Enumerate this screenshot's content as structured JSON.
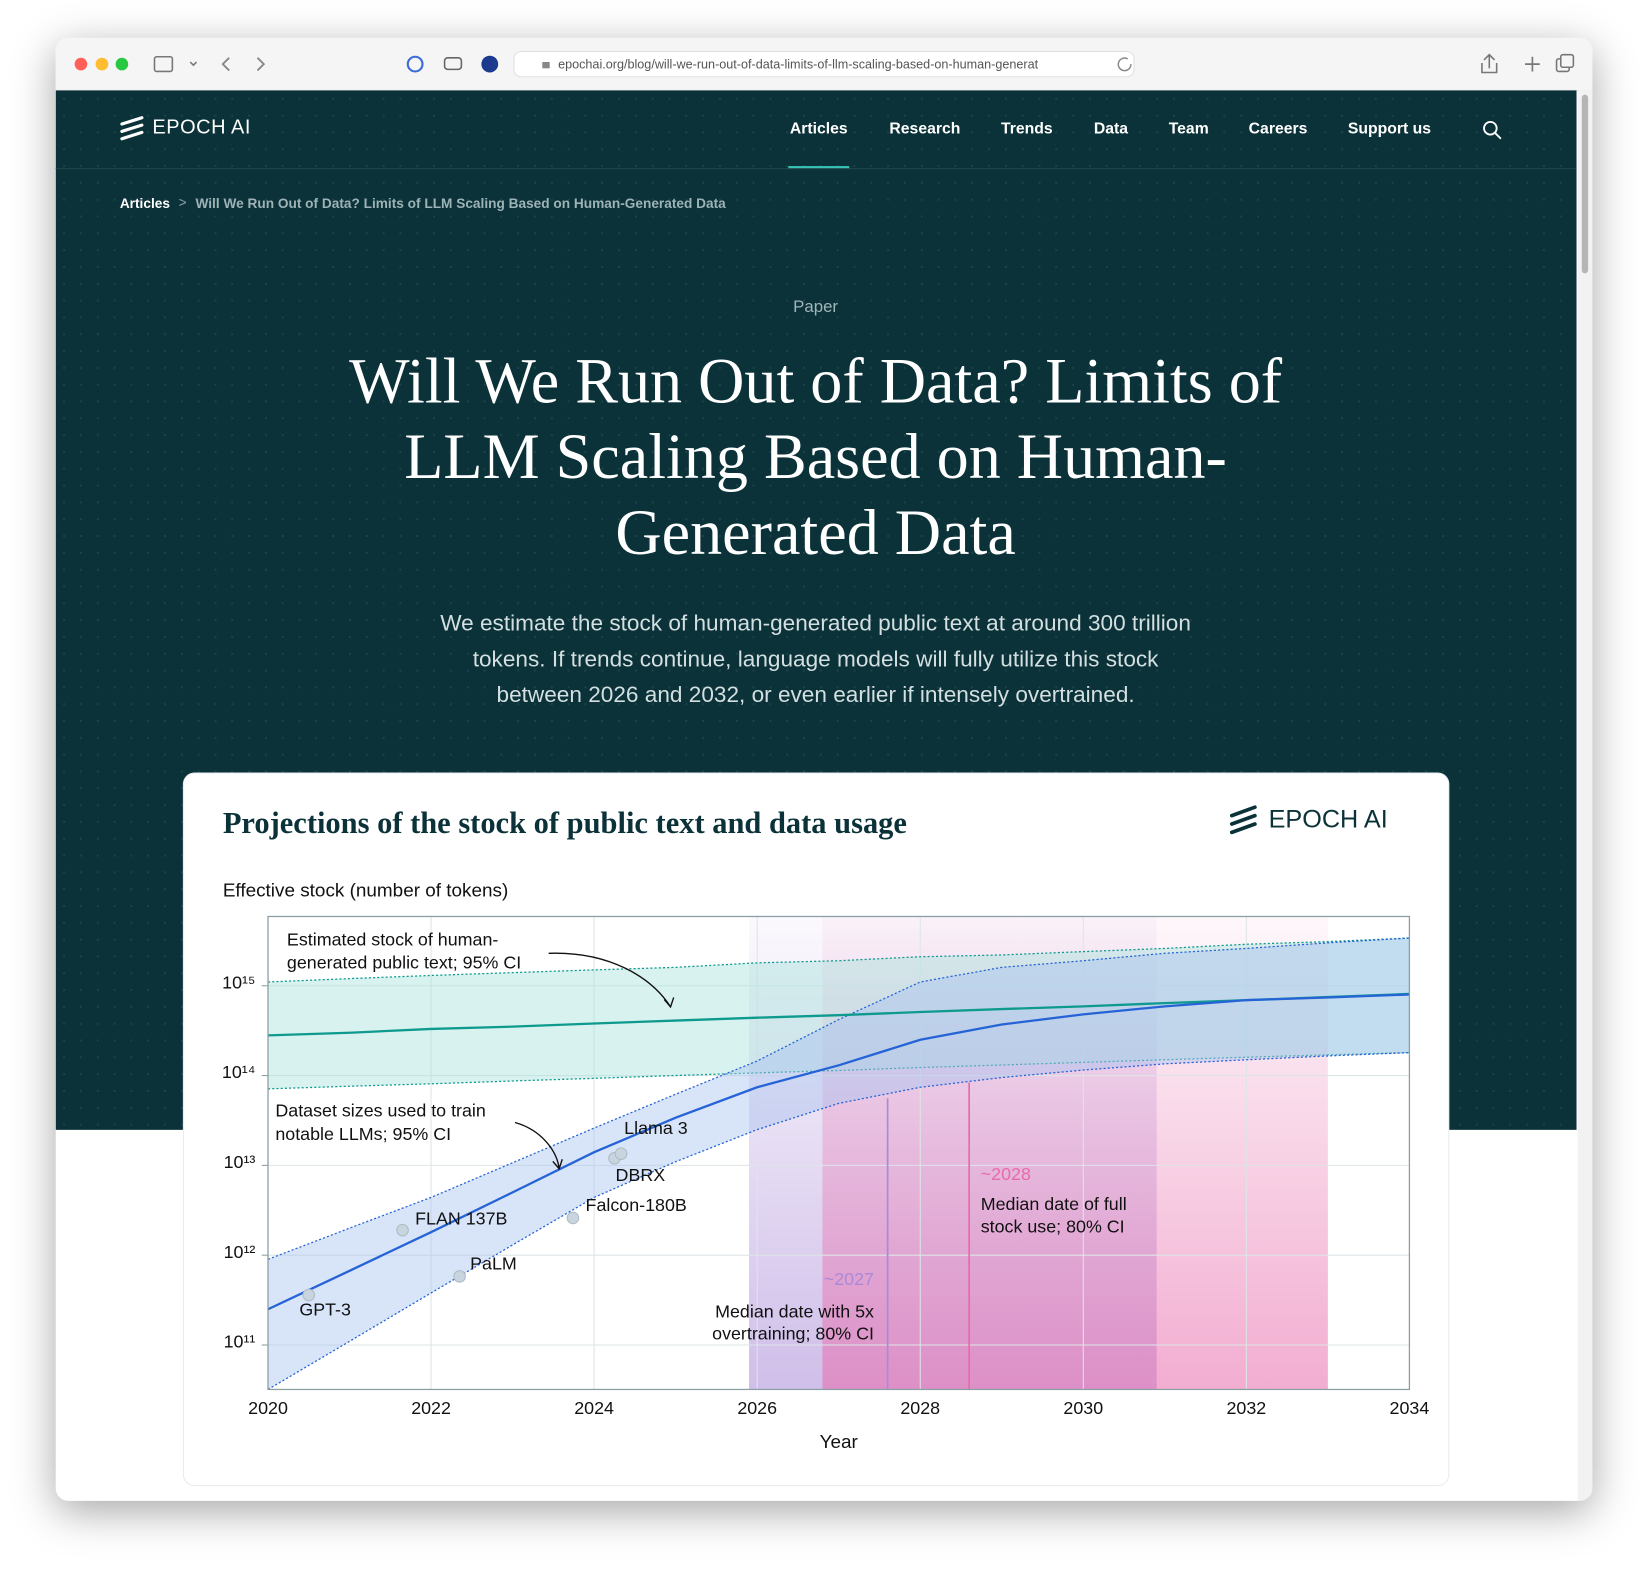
{
  "browser": {
    "url": "epochai.org/blog/will-we-run-out-of-data-limits-of-llm-scaling-based-on-human-generat"
  },
  "nav": {
    "logo": "EPOCH AI",
    "items": [
      "Articles",
      "Research",
      "Trends",
      "Data",
      "Team",
      "Careers",
      "Support us"
    ],
    "active": 0
  },
  "breadcrumb": [
    "Articles",
    "Will We Run Out of Data? Limits of LLM Scaling Based on Human-Generated Data"
  ],
  "header": {
    "kicker": "Paper",
    "title": "Will We Run Out of Data? Limits of LLM Scaling Based on Human-Generated Data",
    "subtitle": "We estimate the stock of human-generated public text at around 300 trillion tokens. If trends continue, language models will fully utilize this stock between 2026 and 2032, or even earlier if intensely overtrained."
  },
  "chart_data": {
    "type": "line",
    "title": "Projections of the stock of public text and data usage",
    "logo": "EPOCH AI",
    "y_label": "Effective stock (number of tokens)",
    "x_label": "Year",
    "log_y": true,
    "grid": true,
    "xlim": [
      2020,
      2034
    ],
    "xticks": [
      2020,
      2022,
      2024,
      2026,
      2028,
      2030,
      2032,
      2034
    ],
    "ylim": [
      32000000000.0,
      5900000000000000.0
    ],
    "yticks": [
      {
        "value": 100000000000.0,
        "label": "10¹¹"
      },
      {
        "value": 1000000000000.0,
        "label": "10¹²"
      },
      {
        "value": 10000000000000.0,
        "label": "10¹³"
      },
      {
        "value": 100000000000000.0,
        "label": "10¹⁴"
      },
      {
        "value": 1000000000000000.0,
        "label": "10¹⁵"
      }
    ],
    "x": [
      2020,
      2021,
      2022,
      2023,
      2024,
      2025,
      2026,
      2027,
      2028,
      2029,
      2030,
      2031,
      2032,
      2033,
      2034
    ],
    "series": [
      {
        "color": "#0e9a8e",
        "band_color": "#a8e2dc",
        "values": [
          280000000000000.0,
          300000000000000.0,
          330000000000000.0,
          350000000000000.0,
          380000000000000.0,
          410000000000000.0,
          440000000000000.0,
          470000000000000.0,
          510000000000000.0,
          550000000000000.0,
          590000000000000.0,
          640000000000000.0,
          690000000000000.0,
          750000000000000.0,
          810000000000000.0
        ],
        "upper": [
          1100000000000000.0,
          1200000000000000.0,
          1300000000000000.0,
          1400000000000000.0,
          1500000000000000.0,
          1600000000000000.0,
          1800000000000000.0,
          1900000000000000.0,
          2100000000000000.0,
          2200000000000000.0,
          2400000000000000.0,
          2600000000000000.0,
          2900000000000000.0,
          3100000000000000.0,
          3400000000000000.0
        ],
        "lower": [
          71000000000000.0,
          76000000000000.0,
          81000000000000.0,
          87000000000000.0,
          93000000000000.0,
          100000000000000.0,
          107000000000000.0,
          114000000000000.0,
          123000000000000.0,
          131000000000000.0,
          140000000000000.0,
          150000000000000.0,
          160000000000000.0,
          170000000000000.0,
          180000000000000.0
        ]
      },
      {
        "color": "#2563d6",
        "band_color": "#a9c4f0",
        "values": [
          250000000000.0,
          670000000000.0,
          1800000000000.0,
          5000000000000.0,
          14000000000000.0,
          34000000000000.0,
          74000000000000.0,
          130000000000000.0,
          250000000000000.0,
          370000000000000.0,
          480000000000000.0,
          590000000000000.0,
          690000000000000.0,
          740000000000000.0,
          800000000000000.0
        ],
        "upper": [
          900000000000.0,
          2000000000000.0,
          4400000000000.0,
          10700000000000.0,
          26000000000000.0,
          62000000000000.0,
          145000000000000.0,
          420000000000000.0,
          1100000000000000.0,
          1600000000000000.0,
          1900000000000000.0,
          2300000000000000.0,
          2600000000000000.0,
          3000000000000000.0,
          3400000000000000.0
        ],
        "lower": [
          32000000000.0,
          110000000000.0,
          380000000000.0,
          1300000000000.0,
          4400000000000.0,
          11000000000000.0,
          25000000000000.0,
          49000000000000.0,
          74000000000000.0,
          95000000000000.0,
          115000000000000.0,
          135000000000000.0,
          150000000000000.0,
          165000000000000.0,
          180000000000000.0
        ]
      }
    ],
    "models": {
      "names": [
        "GPT-3",
        "FLAN 137B",
        "PaLM",
        "Falcon-180B",
        "DBRX",
        "Llama 3"
      ],
      "x": [
        2020.5,
        2021.65,
        2022.35,
        2023.74,
        2024.25,
        2024.33
      ],
      "values": [
        360000000000.0,
        1900000000000.0,
        580000000000.0,
        2600000000000.0,
        12000000000000.0,
        13500000000000.0
      ]
    },
    "intervals": [
      {
        "range": [
          2025.9,
          2030.9
        ],
        "median": 2027.6,
        "color": "#a98ad8",
        "median_label": "~2027",
        "label": [
          "Median date with 5x",
          "overtraining; 80% CI"
        ]
      },
      {
        "range": [
          2026.8,
          2033.0
        ],
        "median": 2028.6,
        "color": "#e86aaa",
        "median_label": "~2028",
        "label": [
          "Median date of full",
          "stock use; 80% CI"
        ]
      }
    ],
    "annotations": [
      [
        "Estimated stock of human-",
        "generated public text; 95% CI"
      ],
      [
        "Dataset sizes used to train",
        "notable LLMs; 95% CI"
      ]
    ]
  }
}
